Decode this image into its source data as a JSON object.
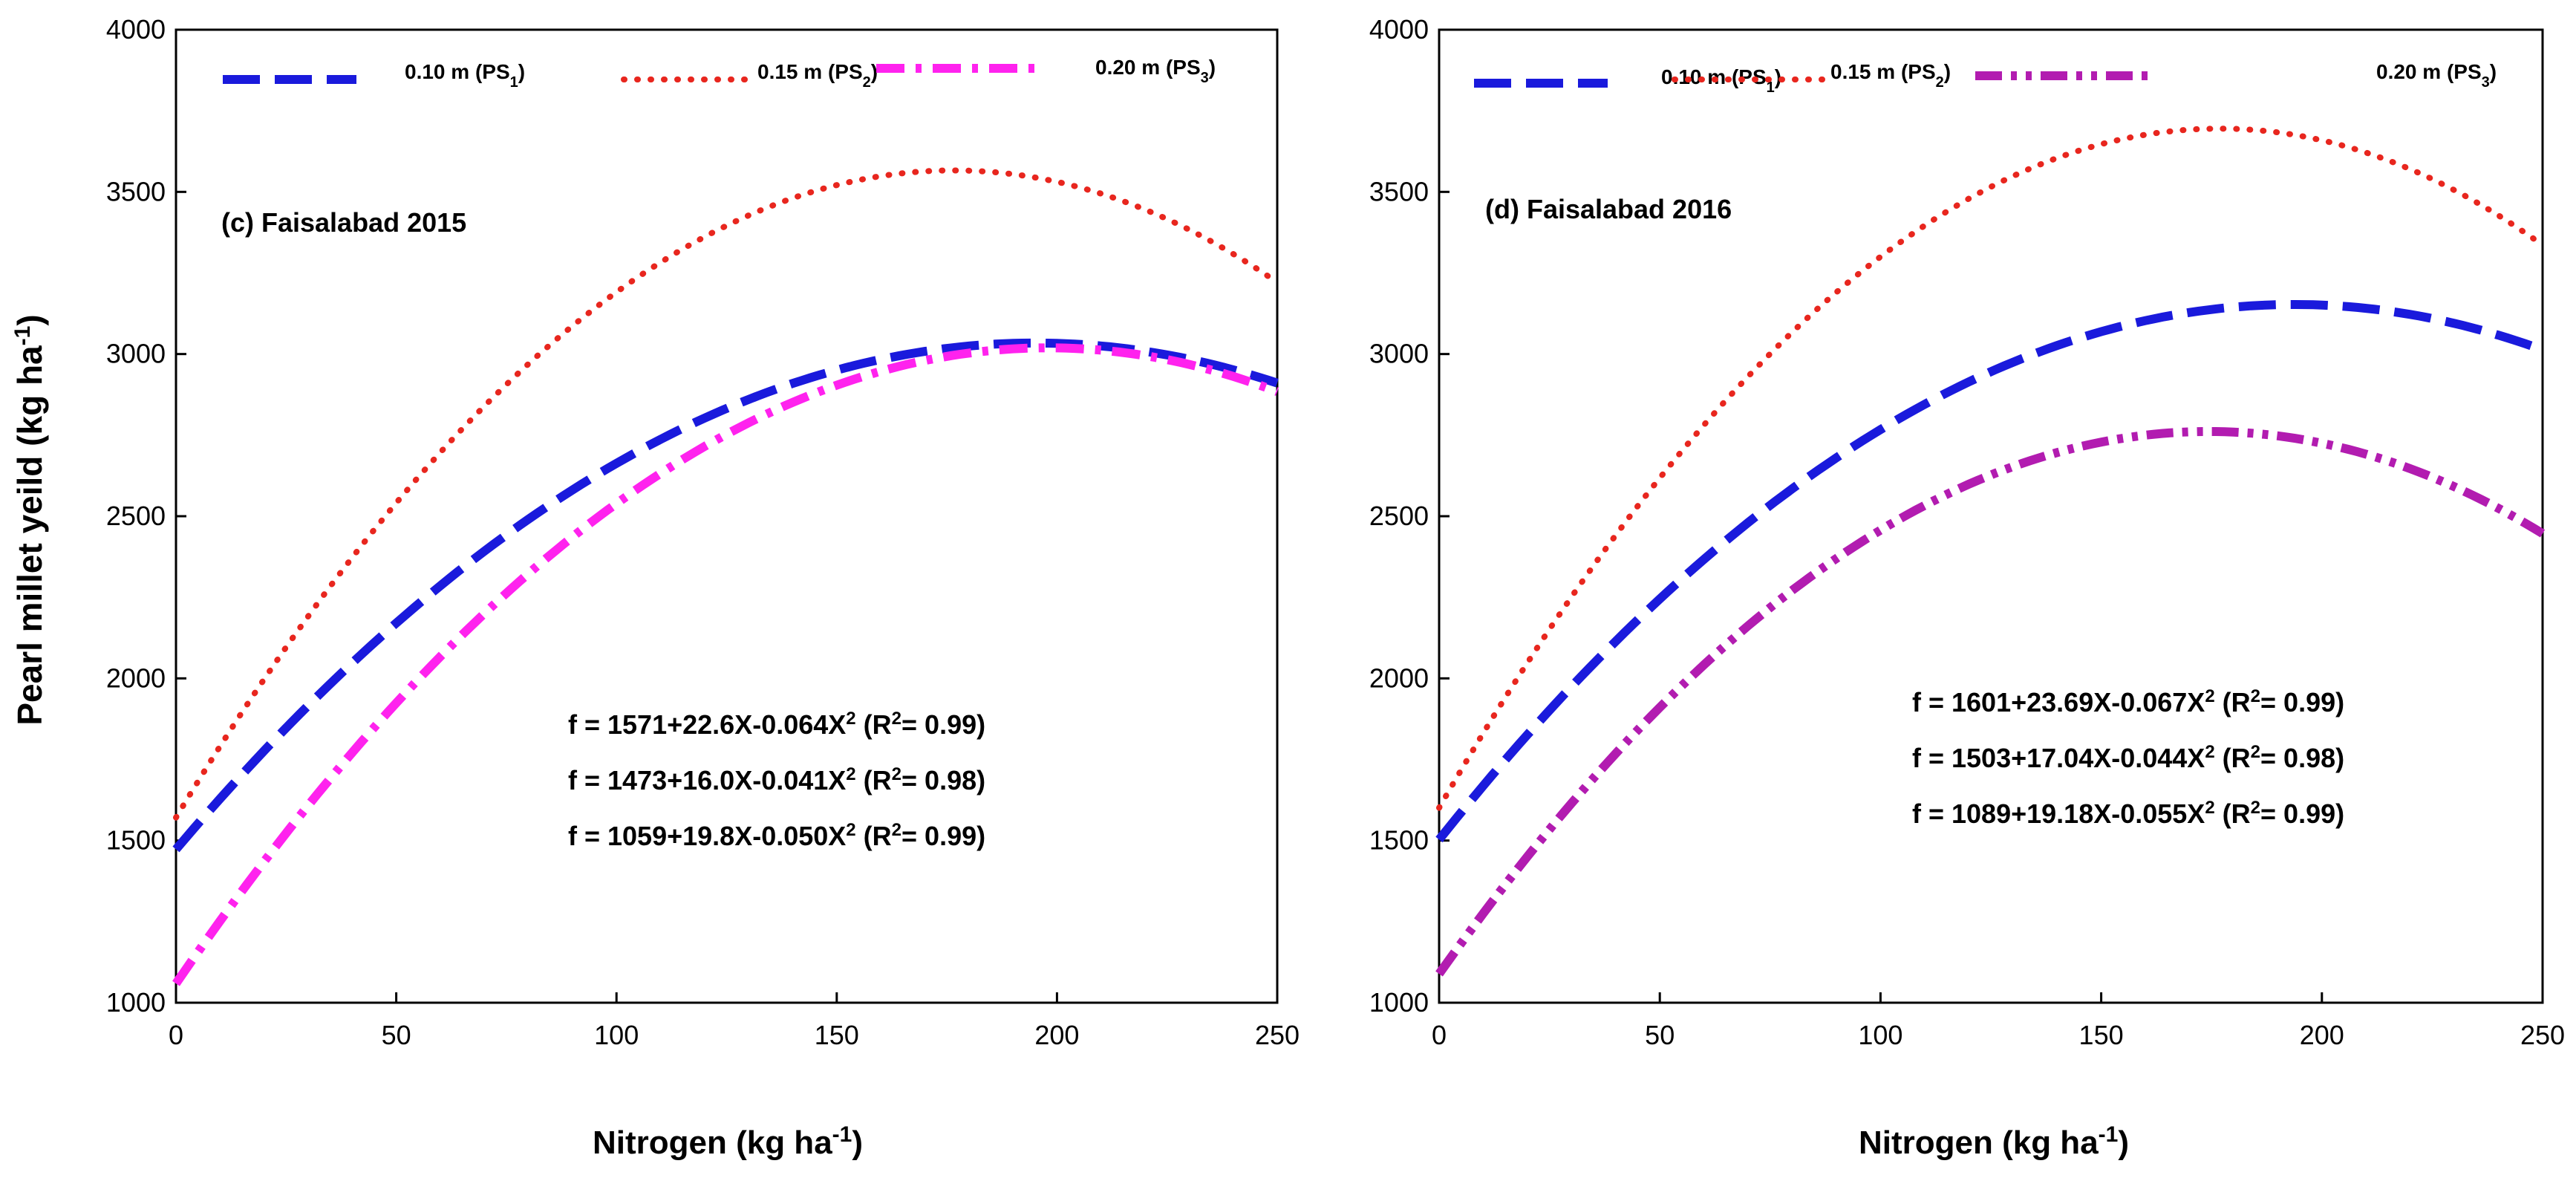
{
  "chart_data": [
    {
      "type": "line",
      "panel_label": "(c) Faisalabad 2015",
      "ylabel_main": "Pearl millet yeild (kg ha",
      "ylabel_sup": "-1",
      "ylabel_close": ")",
      "xlabel_main": "Nitrogen (kg ha",
      "xlabel_sup": "-1",
      "xlabel_close": ")",
      "xlim": [
        0,
        250
      ],
      "ylim": [
        1000,
        4000
      ],
      "xticks": [
        "0",
        "50",
        "100",
        "150",
        "200",
        "250"
      ],
      "yticks": [
        "1000",
        "1500",
        "2000",
        "2500",
        "3000",
        "3500",
        "4000"
      ],
      "grid": false,
      "legend_position": "top",
      "series": [
        {
          "name": "0.10 m (PS",
          "sub": "1",
          "close": ")",
          "color": "#1a1adc",
          "style": "dash",
          "coef": [
            1473,
            16.0,
            -0.041
          ]
        },
        {
          "name": "0.15 m (PS",
          "sub": "2",
          "close": ")",
          "color": "#e8261e",
          "style": "dot",
          "coef": [
            1571,
            22.6,
            -0.064
          ]
        },
        {
          "name": "0.20 m (PS",
          "sub": "3",
          "close": ")",
          "color": "#ff22ee",
          "style": "dashdot",
          "coef": [
            1059,
            19.8,
            -0.05
          ]
        }
      ],
      "equations": [
        {
          "main": "f = 1571+22.6X-0.064X",
          "sup": "2",
          "r_open": " (R",
          "r_sup": "2",
          "r_close": "= 0.99)"
        },
        {
          "main": "f = 1473+16.0X-0.041X",
          "sup": "2",
          "r_open": " (R",
          "r_sup": "2",
          "r_close": "= 0.98)"
        },
        {
          "main": "f = 1059+19.8X-0.050X",
          "sup": "2",
          "r_open": " (R",
          "r_sup": "2",
          "r_close": "= 0.99)"
        }
      ]
    },
    {
      "type": "line",
      "panel_label": "(d) Faisalabad 2016",
      "xlabel_main": "Nitrogen (kg ha",
      "xlabel_sup": "-1",
      "xlabel_close": ")",
      "xlim": [
        0,
        250
      ],
      "ylim": [
        1000,
        4000
      ],
      "xticks": [
        "0",
        "50",
        "100",
        "150",
        "200",
        "250"
      ],
      "yticks": [
        "1000",
        "1500",
        "2000",
        "2500",
        "3000",
        "3500",
        "4000"
      ],
      "grid": false,
      "legend_position": "top",
      "series": [
        {
          "name": "0.10 m (PS",
          "sub": "1",
          "close": ")",
          "color": "#1a1adc",
          "style": "dash",
          "coef": [
            1503,
            17.04,
            -0.044
          ]
        },
        {
          "name": "0.15 m (PS",
          "sub": "2",
          "close": ")",
          "color": "#e8261e",
          "style": "dot",
          "coef": [
            1601,
            23.69,
            -0.067
          ]
        },
        {
          "name": "0.20 m (PS",
          "sub": "3",
          "close": ")",
          "color": "#b21cb0",
          "style": "dashdotdot",
          "coef": [
            1089,
            19.18,
            -0.055
          ]
        }
      ],
      "equations": [
        {
          "main": "f = 1601+23.69X-0.067X",
          "sup": "2",
          "r_open": " (R",
          "r_sup": "2",
          "r_close": "= 0.99)"
        },
        {
          "main": "f = 1503+17.04X-0.044X",
          "sup": "2",
          "r_open": " (R",
          "r_sup": "2",
          "r_close": "= 0.98)"
        },
        {
          "main": "f = 1089+19.18X-0.055X",
          "sup": "2",
          "r_open": " (R",
          "r_sup": "2",
          "r_close": "= 0.99)"
        }
      ]
    }
  ]
}
